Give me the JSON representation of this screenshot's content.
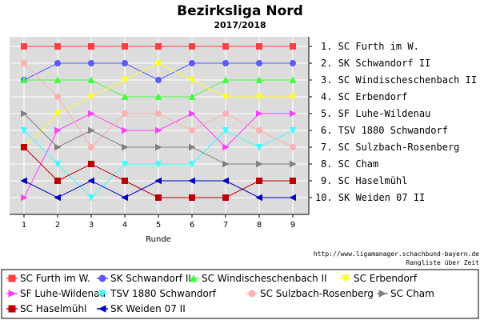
{
  "chart_data": {
    "type": "line",
    "title": "Bezirksliga Nord",
    "subtitle": "2017/2018",
    "xlabel": "Runde",
    "x": [
      1,
      2,
      3,
      4,
      5,
      6,
      7,
      8,
      9
    ],
    "ylim": [
      1,
      10
    ],
    "y_inverted": true,
    "grid": true,
    "legend_position": "bottom",
    "right_labels": [
      "1. SC Furth im W.",
      "2. SK Schwandorf II",
      "3. SC Windischeschenbach II",
      "4. SC Erbendorf",
      "5. SF Luhe-Wildenau",
      "6. TSV 1880 Schwandorf",
      "7. SC Sulzbach-Rosenberg",
      "8. SC Cham",
      "9. SC Haselmühl",
      "10. SK Weiden 07 II"
    ],
    "series": [
      {
        "name": "SC Furth im W.",
        "color": "#ff4040",
        "marker": "square",
        "values": [
          1,
          1,
          1,
          1,
          1,
          1,
          1,
          1,
          1
        ]
      },
      {
        "name": "SK Schwandorf II",
        "color": "#5a5aff",
        "marker": "circle",
        "values": [
          3,
          2,
          2,
          2,
          3,
          2,
          2,
          2,
          2
        ]
      },
      {
        "name": "SC Windischeschenbach II",
        "color": "#40ff40",
        "marker": "triangle-up",
        "values": [
          3,
          3,
          3,
          4,
          4,
          4,
          3,
          3,
          3
        ]
      },
      {
        "name": "SC Erbendorf",
        "color": "#ffff20",
        "marker": "triangle-down",
        "values": [
          7,
          5,
          4,
          3,
          2,
          3,
          4,
          4,
          4
        ]
      },
      {
        "name": "SF Luhe-Wildenau",
        "color": "#ff40ff",
        "marker": "triangle-right",
        "values": [
          10,
          6,
          5,
          6,
          6,
          5,
          7,
          5,
          5
        ]
      },
      {
        "name": "TSV 1880 Schwandorf",
        "color": "#40ffff",
        "marker": "triangle-down",
        "values": [
          6,
          8,
          10,
          8,
          8,
          8,
          6,
          7,
          6
        ]
      },
      {
        "name": "SC Sulzbach-Rosenberg",
        "color": "#ffb0b0",
        "marker": "circle",
        "values": [
          2,
          4,
          7,
          5,
          5,
          6,
          5,
          6,
          7
        ]
      },
      {
        "name": "SC Cham",
        "color": "#808080",
        "marker": "triangle-right",
        "values": [
          5,
          7,
          6,
          7,
          7,
          7,
          8,
          8,
          8
        ]
      },
      {
        "name": "SC Haselmühl",
        "color": "#c00000",
        "marker": "square",
        "values": [
          7,
          9,
          8,
          9,
          10,
          10,
          10,
          9,
          9
        ]
      },
      {
        "name": "SK Weiden 07 II",
        "color": "#0000c0",
        "marker": "triangle-left",
        "values": [
          9,
          10,
          9,
          10,
          9,
          9,
          9,
          10,
          10
        ]
      }
    ]
  },
  "footer": {
    "url": "http://www.ligamanager.schachbund-bayern.de",
    "caption": "Rangliste über Zeit"
  }
}
